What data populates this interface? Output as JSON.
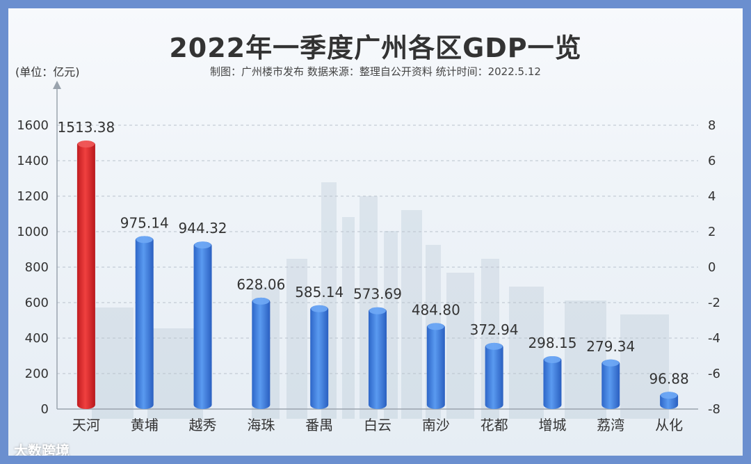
{
  "chart_data": {
    "type": "bar",
    "title": "2022年一季度广州各区GDP一览",
    "subtitle": "制图：广州楼市发布  数据来源：整理自公开资料  统计时间：2022.5.12",
    "ylabel": "(单位：亿元)",
    "categories": [
      "天河",
      "黄埔",
      "越秀",
      "海珠",
      "番禺",
      "白云",
      "南沙",
      "花都",
      "增城",
      "荔湾",
      "从化"
    ],
    "values": [
      1513.38,
      975.14,
      944.32,
      628.06,
      585.14,
      573.69,
      484.8,
      372.94,
      298.15,
      279.34,
      96.88
    ],
    "value_labels": [
      "1513.38",
      "975.14",
      "944.32",
      "628.06",
      "585.14",
      "573.69",
      "484.80",
      "372.94",
      "298.15",
      "279.34",
      "96.88"
    ],
    "highlight_index": 0,
    "ylim": [
      0,
      1600
    ],
    "yticks": [
      0,
      200,
      400,
      600,
      800,
      1000,
      1200,
      1400,
      1600
    ],
    "y2ticks": [
      -8,
      -6,
      -4,
      -2,
      0,
      2,
      4,
      6,
      8
    ],
    "y2lim": [
      -8,
      8
    ],
    "grid": true,
    "colors": {
      "bar": "#3f7fe0",
      "highlight": "#e0282c",
      "highlight_label": "#d42a2a"
    }
  },
  "watermark": "大数跨境"
}
